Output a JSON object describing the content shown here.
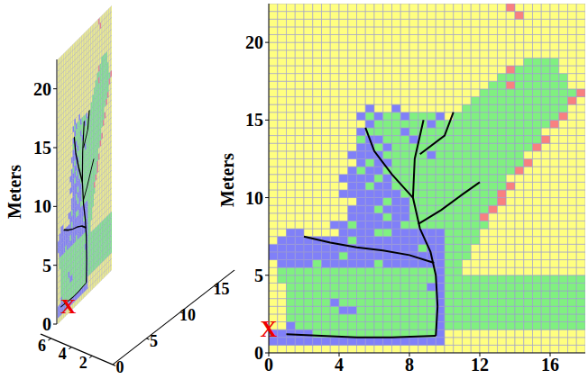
{
  "chart_data": [
    {
      "type": "heatmap_3d",
      "ylabel": "Meters",
      "xlim": [
        0,
        18
      ],
      "xticks": [
        0,
        5,
        10,
        15
      ],
      "ylim": [
        0,
        22.5
      ],
      "yticks": [
        0,
        5,
        10,
        15,
        20
      ],
      "zlim": [
        0,
        7
      ],
      "zticks": [
        2,
        4,
        6
      ],
      "grid": true,
      "annotations": [
        {
          "text": "X",
          "x": 0,
          "y": 1.6,
          "color": "#ee0000"
        }
      ]
    },
    {
      "type": "heatmap",
      "ylabel": "Meters",
      "xlim": [
        0,
        18
      ],
      "xticks": [
        0,
        4,
        8,
        12,
        16
      ],
      "ylim": [
        0,
        22.5
      ],
      "yticks": [
        0,
        5,
        10,
        15,
        20
      ],
      "grid": true,
      "annotations": [
        {
          "text": "X",
          "x": 0,
          "y": 1.6,
          "color": "#ee0000"
        }
      ]
    }
  ],
  "colors": [
    "#ffff80",
    "#80f080",
    "#8080f8",
    "#f88080"
  ],
  "cells": [
    [
      0,
      0,
      0,
      0,
      0,
      0,
      0,
      0,
      0,
      0,
      0,
      0,
      0,
      0,
      0,
      0,
      0,
      0,
      0,
      0,
      0,
      0,
      0,
      0,
      0,
      0,
      0,
      0,
      0,
      0,
      0,
      0,
      0,
      0,
      0,
      0
    ],
    [
      2,
      2,
      2,
      2,
      2,
      2,
      2,
      2,
      2,
      2,
      2,
      2,
      2,
      2,
      2,
      2,
      2,
      2,
      2,
      2,
      0,
      0,
      0,
      0,
      0,
      0,
      0,
      0,
      0,
      0,
      0,
      0,
      0,
      0,
      0,
      0
    ],
    [
      2,
      2,
      2,
      2,
      2,
      1,
      1,
      1,
      1,
      1,
      1,
      1,
      1,
      1,
      1,
      1,
      1,
      1,
      1,
      2,
      0,
      0,
      0,
      0,
      0,
      0,
      0,
      0,
      0,
      0,
      0,
      0,
      0,
      0,
      0,
      0
    ],
    [
      0,
      0,
      2,
      1,
      1,
      1,
      1,
      1,
      1,
      1,
      1,
      1,
      1,
      1,
      1,
      1,
      1,
      1,
      1,
      2,
      1,
      1,
      1,
      1,
      1,
      1,
      1,
      1,
      1,
      1,
      1,
      1,
      1,
      1,
      1,
      1
    ],
    [
      0,
      0,
      1,
      1,
      1,
      1,
      1,
      1,
      1,
      1,
      1,
      1,
      1,
      1,
      1,
      1,
      1,
      1,
      1,
      2,
      1,
      1,
      1,
      1,
      1,
      1,
      1,
      1,
      1,
      1,
      1,
      1,
      1,
      1,
      1,
      1
    ],
    [
      0,
      0,
      1,
      1,
      1,
      1,
      1,
      1,
      2,
      2,
      1,
      1,
      1,
      1,
      1,
      1,
      1,
      1,
      1,
      2,
      1,
      1,
      1,
      1,
      1,
      1,
      1,
      1,
      1,
      1,
      1,
      1,
      1,
      1,
      1,
      1
    ],
    [
      0,
      0,
      1,
      1,
      1,
      1,
      1,
      2,
      1,
      1,
      1,
      1,
      1,
      1,
      1,
      1,
      1,
      1,
      1,
      2,
      1,
      1,
      1,
      1,
      1,
      1,
      1,
      1,
      1,
      1,
      1,
      1,
      1,
      1,
      1,
      1
    ],
    [
      0,
      0,
      1,
      1,
      1,
      1,
      1,
      1,
      1,
      1,
      1,
      1,
      1,
      1,
      1,
      1,
      1,
      1,
      1,
      2,
      1,
      1,
      1,
      1,
      1,
      1,
      1,
      1,
      1,
      1,
      1,
      1,
      1,
      1,
      1,
      1
    ],
    [
      0,
      0,
      1,
      1,
      1,
      1,
      1,
      1,
      1,
      1,
      1,
      1,
      1,
      1,
      1,
      1,
      1,
      1,
      2,
      2,
      1,
      1,
      1,
      1,
      1,
      1,
      1,
      1,
      1,
      1,
      1,
      1,
      1,
      1,
      1,
      1
    ],
    [
      0,
      1,
      1,
      1,
      1,
      1,
      1,
      1,
      1,
      1,
      1,
      1,
      1,
      1,
      1,
      1,
      1,
      1,
      1,
      2,
      1,
      1,
      1,
      1,
      1,
      1,
      1,
      1,
      1,
      1,
      1,
      1,
      1,
      1,
      1,
      1
    ],
    [
      0,
      1,
      1,
      1,
      1,
      1,
      1,
      1,
      1,
      1,
      1,
      1,
      1,
      1,
      1,
      1,
      1,
      1,
      1,
      2,
      1,
      1,
      0,
      0,
      0,
      0,
      0,
      0,
      0,
      0,
      0,
      0,
      0,
      0,
      0,
      0
    ],
    [
      0,
      2,
      2,
      2,
      2,
      1,
      2,
      2,
      2,
      2,
      2,
      2,
      1,
      2,
      2,
      2,
      2,
      2,
      2,
      2,
      1,
      1,
      0,
      0,
      0,
      0,
      0,
      0,
      0,
      0,
      0,
      0,
      0,
      0,
      0,
      0
    ],
    [
      2,
      2,
      2,
      2,
      2,
      2,
      2,
      2,
      1,
      2,
      2,
      2,
      2,
      2,
      2,
      2,
      2,
      2,
      2,
      2,
      1,
      1,
      1,
      0,
      0,
      0,
      0,
      0,
      0,
      0,
      0,
      0,
      0,
      0,
      0,
      0
    ],
    [
      2,
      2,
      2,
      2,
      2,
      2,
      2,
      2,
      2,
      2,
      2,
      2,
      2,
      2,
      2,
      2,
      2,
      1,
      2,
      2,
      1,
      1,
      1,
      0,
      0,
      0,
      0,
      0,
      0,
      0,
      0,
      0,
      0,
      0,
      0,
      0
    ],
    [
      0,
      2,
      2,
      2,
      2,
      2,
      2,
      2,
      2,
      1,
      2,
      2,
      2,
      2,
      2,
      2,
      2,
      2,
      2,
      2,
      1,
      1,
      1,
      1,
      0,
      0,
      0,
      0,
      0,
      0,
      0,
      0,
      0,
      0,
      0,
      0
    ],
    [
      0,
      0,
      2,
      2,
      0,
      0,
      0,
      0,
      2,
      2,
      2,
      2,
      1,
      1,
      2,
      2,
      2,
      2,
      2,
      2,
      1,
      1,
      1,
      1,
      0,
      0,
      0,
      0,
      0,
      0,
      0,
      0,
      0,
      0,
      0,
      0
    ],
    [
      0,
      0,
      0,
      0,
      0,
      0,
      0,
      2,
      2,
      1,
      2,
      2,
      2,
      2,
      2,
      1,
      1,
      1,
      1,
      1,
      1,
      1,
      1,
      1,
      1,
      0,
      0,
      0,
      0,
      0,
      0,
      0,
      0,
      0,
      0,
      0
    ],
    [
      0,
      0,
      0,
      0,
      0,
      0,
      0,
      0,
      0,
      2,
      2,
      2,
      2,
      1,
      2,
      2,
      1,
      1,
      1,
      1,
      1,
      1,
      1,
      1,
      3,
      0,
      0,
      0,
      0,
      0,
      0,
      0,
      0,
      0,
      0,
      0
    ],
    [
      0,
      0,
      0,
      0,
      0,
      0,
      0,
      0,
      0,
      2,
      2,
      2,
      1,
      2,
      2,
      2,
      1,
      1,
      1,
      1,
      1,
      1,
      1,
      1,
      1,
      3,
      0,
      0,
      0,
      0,
      0,
      0,
      0,
      0,
      0,
      0
    ],
    [
      0,
      0,
      0,
      0,
      0,
      0,
      0,
      0,
      0,
      0,
      2,
      2,
      2,
      1,
      2,
      2,
      1,
      1,
      1,
      1,
      1,
      1,
      1,
      1,
      1,
      1,
      3,
      0,
      0,
      0,
      0,
      0,
      0,
      0,
      0,
      0
    ],
    [
      0,
      0,
      0,
      0,
      0,
      0,
      0,
      0,
      2,
      2,
      2,
      2,
      2,
      2,
      2,
      1,
      1,
      1,
      1,
      1,
      1,
      1,
      1,
      1,
      1,
      1,
      3,
      0,
      0,
      0,
      0,
      0,
      0,
      0,
      0,
      0
    ],
    [
      0,
      0,
      0,
      0,
      0,
      0,
      0,
      0,
      0,
      2,
      2,
      1,
      2,
      2,
      1,
      1,
      1,
      1,
      1,
      1,
      1,
      1,
      1,
      1,
      1,
      1,
      1,
      3,
      0,
      0,
      0,
      0,
      0,
      0,
      0,
      0
    ],
    [
      0,
      0,
      0,
      0,
      0,
      0,
      0,
      0,
      2,
      2,
      2,
      2,
      1,
      2,
      1,
      1,
      1,
      1,
      1,
      1,
      1,
      1,
      1,
      1,
      1,
      1,
      1,
      0,
      0,
      0,
      0,
      0,
      0,
      0,
      0,
      0
    ],
    [
      0,
      0,
      0,
      0,
      0,
      0,
      0,
      0,
      0,
      2,
      1,
      2,
      2,
      1,
      1,
      1,
      1,
      1,
      1,
      1,
      1,
      1,
      1,
      1,
      1,
      1,
      1,
      1,
      3,
      0,
      0,
      0,
      0,
      0,
      0,
      0
    ],
    [
      0,
      0,
      0,
      0,
      0,
      0,
      0,
      0,
      0,
      0,
      2,
      1,
      2,
      2,
      1,
      1,
      1,
      1,
      1,
      1,
      1,
      1,
      1,
      1,
      1,
      1,
      1,
      1,
      1,
      3,
      0,
      0,
      0,
      0,
      0,
      0
    ],
    [
      0,
      0,
      0,
      0,
      0,
      0,
      0,
      0,
      0,
      2,
      2,
      2,
      2,
      1,
      1,
      1,
      1,
      1,
      2,
      1,
      1,
      1,
      1,
      1,
      1,
      1,
      1,
      1,
      1,
      0,
      0,
      0,
      0,
      0,
      0,
      0
    ],
    [
      0,
      0,
      0,
      0,
      0,
      0,
      0,
      0,
      0,
      0,
      2,
      2,
      1,
      2,
      1,
      1,
      1,
      1,
      1,
      1,
      1,
      1,
      1,
      1,
      1,
      1,
      1,
      1,
      1,
      1,
      3,
      0,
      0,
      0,
      0,
      0
    ],
    [
      0,
      0,
      0,
      0,
      0,
      0,
      0,
      0,
      0,
      0,
      1,
      2,
      2,
      1,
      1,
      1,
      2,
      1,
      1,
      1,
      1,
      1,
      1,
      1,
      1,
      1,
      1,
      1,
      1,
      1,
      1,
      3,
      0,
      0,
      0,
      0
    ],
    [
      0,
      0,
      0,
      0,
      0,
      0,
      0,
      0,
      0,
      0,
      2,
      1,
      1,
      1,
      1,
      2,
      1,
      1,
      1,
      1,
      1,
      1,
      1,
      1,
      1,
      1,
      1,
      1,
      1,
      1,
      1,
      0,
      0,
      0,
      0,
      0
    ],
    [
      0,
      0,
      0,
      0,
      0,
      0,
      0,
      0,
      0,
      0,
      0,
      2,
      1,
      1,
      1,
      1,
      1,
      1,
      2,
      1,
      1,
      1,
      1,
      1,
      1,
      1,
      1,
      1,
      1,
      1,
      1,
      1,
      3,
      0,
      0,
      0
    ],
    [
      0,
      0,
      0,
      0,
      0,
      0,
      0,
      0,
      0,
      0,
      2,
      1,
      2,
      1,
      1,
      2,
      1,
      1,
      1,
      2,
      0,
      1,
      1,
      1,
      1,
      1,
      1,
      1,
      1,
      1,
      1,
      1,
      1,
      3,
      0,
      0
    ],
    [
      0,
      0,
      0,
      0,
      0,
      0,
      0,
      0,
      0,
      0,
      0,
      2,
      0,
      0,
      2,
      0,
      0,
      0,
      0,
      0,
      0,
      0,
      1,
      1,
      1,
      1,
      1,
      1,
      1,
      1,
      1,
      1,
      1,
      1,
      0,
      0
    ],
    [
      0,
      0,
      0,
      0,
      0,
      0,
      0,
      0,
      0,
      0,
      0,
      0,
      0,
      0,
      0,
      0,
      0,
      0,
      0,
      0,
      0,
      0,
      0,
      1,
      1,
      1,
      1,
      1,
      1,
      1,
      1,
      1,
      1,
      1,
      3,
      0
    ],
    [
      0,
      0,
      0,
      0,
      0,
      0,
      0,
      0,
      0,
      0,
      0,
      0,
      0,
      0,
      0,
      0,
      0,
      0,
      0,
      0,
      0,
      0,
      0,
      0,
      1,
      1,
      1,
      1,
      1,
      1,
      1,
      1,
      1,
      1,
      1,
      3
    ],
    [
      0,
      0,
      0,
      0,
      0,
      0,
      0,
      0,
      0,
      0,
      0,
      0,
      0,
      0,
      0,
      0,
      0,
      0,
      0,
      0,
      0,
      0,
      0,
      0,
      0,
      1,
      1,
      3,
      1,
      1,
      1,
      1,
      1,
      1,
      0,
      0
    ],
    [
      0,
      0,
      0,
      0,
      0,
      0,
      0,
      0,
      0,
      0,
      0,
      0,
      0,
      0,
      0,
      0,
      0,
      0,
      0,
      0,
      0,
      0,
      0,
      0,
      0,
      0,
      1,
      1,
      1,
      1,
      1,
      1,
      1,
      1,
      0,
      0
    ],
    [
      0,
      0,
      0,
      0,
      0,
      0,
      0,
      0,
      0,
      0,
      0,
      0,
      0,
      0,
      0,
      0,
      0,
      0,
      0,
      0,
      0,
      0,
      0,
      0,
      0,
      0,
      0,
      3,
      1,
      1,
      1,
      1,
      1,
      0,
      0,
      0
    ],
    [
      0,
      0,
      0,
      0,
      0,
      0,
      0,
      0,
      0,
      0,
      0,
      0,
      0,
      0,
      0,
      0,
      0,
      0,
      0,
      0,
      0,
      0,
      0,
      0,
      0,
      0,
      0,
      0,
      0,
      1,
      1,
      1,
      1,
      0,
      0,
      0
    ],
    [
      0,
      0,
      0,
      0,
      0,
      0,
      0,
      0,
      0,
      0,
      0,
      0,
      0,
      0,
      0,
      0,
      0,
      0,
      0,
      0,
      0,
      0,
      0,
      0,
      0,
      0,
      0,
      0,
      0,
      0,
      0,
      0,
      0,
      0,
      0,
      0
    ],
    [
      0,
      0,
      0,
      0,
      0,
      0,
      0,
      0,
      0,
      0,
      0,
      0,
      0,
      0,
      0,
      0,
      0,
      0,
      0,
      0,
      0,
      0,
      0,
      0,
      0,
      0,
      0,
      0,
      0,
      0,
      0,
      0,
      0,
      0,
      0,
      0
    ],
    [
      0,
      0,
      0,
      0,
      0,
      0,
      0,
      0,
      0,
      0,
      0,
      0,
      0,
      0,
      0,
      0,
      0,
      0,
      0,
      0,
      0,
      0,
      0,
      0,
      0,
      0,
      0,
      0,
      0,
      0,
      0,
      0,
      0,
      0,
      0,
      0
    ],
    [
      0,
      0,
      0,
      0,
      0,
      0,
      0,
      0,
      0,
      0,
      0,
      0,
      0,
      0,
      0,
      0,
      0,
      0,
      0,
      0,
      0,
      0,
      0,
      0,
      0,
      0,
      0,
      0,
      0,
      0,
      0,
      0,
      0,
      0,
      0,
      0
    ],
    [
      0,
      0,
      0,
      0,
      0,
      0,
      0,
      0,
      0,
      0,
      0,
      0,
      0,
      0,
      0,
      0,
      0,
      0,
      0,
      0,
      0,
      0,
      0,
      0,
      0,
      0,
      0,
      0,
      0,
      0,
      0,
      0,
      0,
      0,
      0,
      0
    ],
    [
      0,
      0,
      0,
      0,
      0,
      0,
      0,
      0,
      0,
      0,
      0,
      0,
      0,
      0,
      0,
      0,
      0,
      0,
      0,
      0,
      0,
      0,
      0,
      0,
      0,
      0,
      0,
      0,
      3,
      0,
      0,
      0,
      0,
      0,
      0,
      0
    ],
    [
      0,
      0,
      0,
      0,
      0,
      0,
      0,
      0,
      0,
      0,
      0,
      0,
      0,
      0,
      0,
      0,
      0,
      0,
      0,
      0,
      0,
      0,
      0,
      0,
      0,
      0,
      0,
      3,
      0,
      0,
      0,
      0,
      0,
      0,
      0,
      0
    ]
  ],
  "tree": {
    "color": "#000000",
    "branches": [
      {
        "x": [
          1,
          3,
          5,
          7,
          9.5
        ],
        "y": [
          1.2,
          1.1,
          1.0,
          1.0,
          1.1
        ]
      },
      {
        "x": [
          9.5,
          9.6,
          9.5,
          9.2,
          8.6,
          8.2,
          8.3,
          8.8
        ],
        "y": [
          1.1,
          3,
          5,
          6.5,
          8,
          10,
          12.5,
          15
        ]
      },
      {
        "x": [
          9.4,
          8,
          6.5,
          5,
          3.5,
          2
        ],
        "y": [
          5.8,
          6.3,
          6.6,
          6.8,
          7.1,
          7.5
        ]
      },
      {
        "x": [
          8.5,
          9.8,
          11,
          12
        ],
        "y": [
          8.3,
          9.2,
          10.2,
          11
        ]
      },
      {
        "x": [
          8.2,
          7,
          6,
          5.5
        ],
        "y": [
          10,
          11.5,
          13,
          14.5
        ]
      },
      {
        "x": [
          8.6,
          10,
          10.5
        ],
        "y": [
          12.8,
          14,
          15.5
        ]
      }
    ]
  }
}
